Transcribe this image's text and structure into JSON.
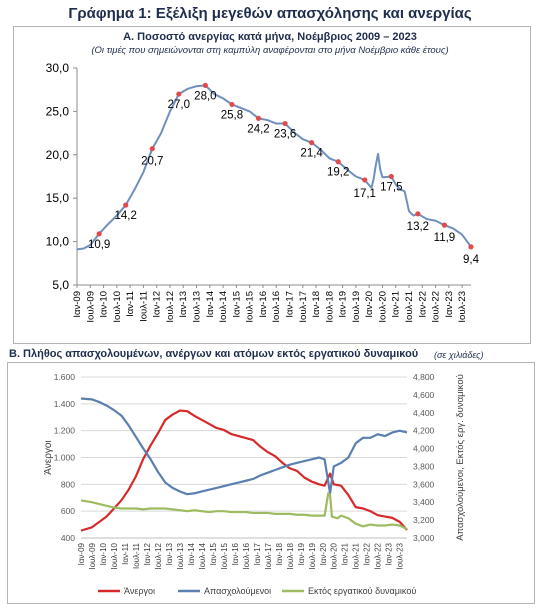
{
  "page": {
    "title": "Γράφημα 1: Εξέλιξη μεγεθών απασχόλησης και ανεργίας"
  },
  "colors": {
    "unemployed": "#d62a2a",
    "employed": "#5b7fae",
    "inactive": "#9dbb61",
    "line_a": "#6f8fbf",
    "marker_a": "#e04b4b"
  },
  "chart_data": [
    {
      "id": "A",
      "type": "line",
      "title": "A. Ποσοστό ανεργίας κατά μήνα, Νοέμβριος 2009 – 2023",
      "subtitle": "(Οι τιμές που σημειώνονται στη καμπύλη αναφέρονται στο μήνα Νοέμβριο κάθε έτους)",
      "ylim": [
        5,
        30
      ],
      "yticks": [
        "5,0",
        "10,0",
        "15,0",
        "20,0",
        "25,0",
        "30,0"
      ],
      "grid": false,
      "x_tick_labels": [
        "Ιαν-09",
        "Ιουλ-09",
        "Ιαν-10",
        "Ιουλ-10",
        "Ιαν-11",
        "Ιουλ-11",
        "Ιαν-12",
        "Ιουλ-12",
        "Ιαν-13",
        "Ιουλ-13",
        "Ιαν-14",
        "Ιουλ-14",
        "Ιαν-15",
        "Ιουλ-15",
        "Ιαν-16",
        "Ιουλ-16",
        "Ιαν-17",
        "Ιουλ-17",
        "Ιαν-18",
        "Ιουλ-18",
        "Ιαν-19",
        "Ιουλ-19",
        "Ιαν-20",
        "Ιουλ-20",
        "Ιαν-21",
        "Ιουλ-21",
        "Ιαν-22",
        "Ιουλ-22",
        "Ιαν-23",
        "Ιουλ-23"
      ],
      "x_range": [
        "2009-01",
        "2023-11"
      ],
      "series": [
        {
          "points": [
            [
              "2009-01",
              9.1
            ],
            [
              "2009-04",
              9.2
            ],
            [
              "2009-07",
              9.6
            ],
            [
              "2009-11",
              10.9
            ],
            [
              "2010-03",
              12.0
            ],
            [
              "2010-07",
              13.0
            ],
            [
              "2010-11",
              14.2
            ],
            [
              "2011-03",
              16.0
            ],
            [
              "2011-07",
              18.0
            ],
            [
              "2011-11",
              20.7
            ],
            [
              "2012-03",
              22.5
            ],
            [
              "2012-07",
              25.0
            ],
            [
              "2012-11",
              27.0
            ],
            [
              "2013-03",
              27.6
            ],
            [
              "2013-07",
              27.9
            ],
            [
              "2013-11",
              28.0
            ],
            [
              "2014-03",
              27.0
            ],
            [
              "2014-07",
              26.5
            ],
            [
              "2014-11",
              25.8
            ],
            [
              "2015-03",
              25.4
            ],
            [
              "2015-07",
              25.0
            ],
            [
              "2015-11",
              24.2
            ],
            [
              "2016-03",
              24.0
            ],
            [
              "2016-07",
              23.6
            ],
            [
              "2016-11",
              23.6
            ],
            [
              "2017-03",
              22.6
            ],
            [
              "2017-07",
              21.8
            ],
            [
              "2017-11",
              21.4
            ],
            [
              "2018-03",
              20.6
            ],
            [
              "2018-07",
              19.6
            ],
            [
              "2018-11",
              19.2
            ],
            [
              "2019-03",
              18.3
            ],
            [
              "2019-07",
              17.5
            ],
            [
              "2019-11",
              17.1
            ],
            [
              "2020-02",
              16.2
            ],
            [
              "2020-03",
              17.2
            ],
            [
              "2020-04",
              18.8
            ],
            [
              "2020-05",
              20.1
            ],
            [
              "2020-06",
              18.3
            ],
            [
              "2020-07",
              17.4
            ],
            [
              "2020-11",
              17.5
            ],
            [
              "2021-01",
              16.6
            ],
            [
              "2021-03",
              16.0
            ],
            [
              "2021-05",
              15.8
            ],
            [
              "2021-07",
              13.5
            ],
            [
              "2021-09",
              13.0
            ],
            [
              "2021-11",
              13.2
            ],
            [
              "2022-03",
              12.6
            ],
            [
              "2022-07",
              12.4
            ],
            [
              "2022-11",
              11.9
            ],
            [
              "2023-03",
              11.5
            ],
            [
              "2023-07",
              10.8
            ],
            [
              "2023-11",
              9.4
            ]
          ]
        }
      ],
      "data_labels": [
        {
          "x": "2009-11",
          "value": "10,9"
        },
        {
          "x": "2010-11",
          "value": "14,2"
        },
        {
          "x": "2011-11",
          "value": "20,7"
        },
        {
          "x": "2012-11",
          "value": "27,0"
        },
        {
          "x": "2013-11",
          "value": "28,0"
        },
        {
          "x": "2014-11",
          "value": "25,8"
        },
        {
          "x": "2015-11",
          "value": "24,2"
        },
        {
          "x": "2016-11",
          "value": "23,6"
        },
        {
          "x": "2017-11",
          "value": "21,4"
        },
        {
          "x": "2018-11",
          "value": "19,2"
        },
        {
          "x": "2019-11",
          "value": "17,1"
        },
        {
          "x": "2020-11",
          "value": "17,5"
        },
        {
          "x": "2021-11",
          "value": "13,2"
        },
        {
          "x": "2022-11",
          "value": "11,9"
        },
        {
          "x": "2023-11",
          "value": "9,4"
        }
      ]
    },
    {
      "id": "B",
      "type": "line",
      "title": "Β. Πλήθος απασχολουμένων, ανέργων και ατόμων εκτός εργατικού δυναμικού",
      "subtitle": "(σε χιλιάδες)",
      "ylabel": "Άνεργοι",
      "y2label": "Απασχολούμενοι, Εκτός εργ. δυναμικού",
      "ylim": [
        400,
        1600
      ],
      "yticks": [
        "400",
        "600",
        "800",
        "1.000",
        "1.200",
        "1.400",
        "1.600"
      ],
      "y2lim": [
        3000,
        4800
      ],
      "y2ticks": [
        "3,000",
        "3,200",
        "3,400",
        "3,600",
        "3,800",
        "4,000",
        "4,200",
        "4,400",
        "4,600",
        "4,800"
      ],
      "x_tick_labels": [
        "Ιαν-09",
        "Ιουλ-09",
        "Ιαν-10",
        "Ιουλ-10",
        "Ιαν-11",
        "Ιουλ-11",
        "Ιαν-12",
        "Ιουλ-12",
        "Ιαν-13",
        "Ιουλ-13",
        "Ιαν-14",
        "Ιουλ-14",
        "Ιαν-15",
        "Ιουλ-15",
        "Ιαν-16",
        "Ιουλ-16",
        "Ιαν-17",
        "Ιουλ-17",
        "Ιαν-18",
        "Ιουλ-18",
        "Ιαν-19",
        "Ιουλ-19",
        "Ιαν-20",
        "Ιουλ-20",
        "Ιαν-21",
        "Ιουλ-21",
        "Ιαν-22",
        "Ιουλ-22",
        "Ιαν-23",
        "Ιουλ-23"
      ],
      "x_range": [
        "2009-01",
        "2023-11"
      ],
      "legend_position": "bottom",
      "series": [
        {
          "name": "Άνεργοι",
          "axis": "left",
          "points": [
            [
              "2009-01",
              455
            ],
            [
              "2009-07",
              480
            ],
            [
              "2009-11",
              520
            ],
            [
              "2010-03",
              560
            ],
            [
              "2010-07",
              620
            ],
            [
              "2010-11",
              680
            ],
            [
              "2011-03",
              760
            ],
            [
              "2011-07",
              860
            ],
            [
              "2011-11",
              990
            ],
            [
              "2012-03",
              1090
            ],
            [
              "2012-07",
              1180
            ],
            [
              "2012-11",
              1280
            ],
            [
              "2013-03",
              1320
            ],
            [
              "2013-07",
              1350
            ],
            [
              "2013-11",
              1345
            ],
            [
              "2014-03",
              1310
            ],
            [
              "2014-07",
              1280
            ],
            [
              "2014-11",
              1250
            ],
            [
              "2015-03",
              1220
            ],
            [
              "2015-07",
              1205
            ],
            [
              "2015-11",
              1175
            ],
            [
              "2016-03",
              1160
            ],
            [
              "2016-07",
              1145
            ],
            [
              "2016-11",
              1130
            ],
            [
              "2017-03",
              1080
            ],
            [
              "2017-07",
              1040
            ],
            [
              "2017-11",
              1010
            ],
            [
              "2018-03",
              960
            ],
            [
              "2018-07",
              920
            ],
            [
              "2018-11",
              900
            ],
            [
              "2019-03",
              850
            ],
            [
              "2019-07",
              820
            ],
            [
              "2019-11",
              800
            ],
            [
              "2020-02",
              790
            ],
            [
              "2020-05",
              880
            ],
            [
              "2020-07",
              800
            ],
            [
              "2020-11",
              790
            ],
            [
              "2021-03",
              720
            ],
            [
              "2021-07",
              630
            ],
            [
              "2021-11",
              620
            ],
            [
              "2022-03",
              600
            ],
            [
              "2022-07",
              570
            ],
            [
              "2022-11",
              560
            ],
            [
              "2023-03",
              550
            ],
            [
              "2023-07",
              520
            ],
            [
              "2023-11",
              460
            ]
          ]
        },
        {
          "name": "Απασχολούμενοι",
          "axis": "right",
          "points": [
            [
              "2009-01",
              4560
            ],
            [
              "2009-07",
              4550
            ],
            [
              "2009-11",
              4520
            ],
            [
              "2010-03",
              4480
            ],
            [
              "2010-07",
              4430
            ],
            [
              "2010-11",
              4370
            ],
            [
              "2011-03",
              4260
            ],
            [
              "2011-07",
              4130
            ],
            [
              "2011-11",
              4000
            ],
            [
              "2012-03",
              3880
            ],
            [
              "2012-07",
              3740
            ],
            [
              "2012-11",
              3620
            ],
            [
              "2013-03",
              3560
            ],
            [
              "2013-07",
              3520
            ],
            [
              "2013-11",
              3490
            ],
            [
              "2014-03",
              3500
            ],
            [
              "2014-07",
              3520
            ],
            [
              "2014-11",
              3540
            ],
            [
              "2015-03",
              3560
            ],
            [
              "2015-07",
              3580
            ],
            [
              "2015-11",
              3600
            ],
            [
              "2016-03",
              3620
            ],
            [
              "2016-07",
              3640
            ],
            [
              "2016-11",
              3660
            ],
            [
              "2017-03",
              3700
            ],
            [
              "2017-07",
              3730
            ],
            [
              "2017-11",
              3760
            ],
            [
              "2018-03",
              3790
            ],
            [
              "2018-07",
              3820
            ],
            [
              "2018-11",
              3840
            ],
            [
              "2019-03",
              3860
            ],
            [
              "2019-07",
              3880
            ],
            [
              "2019-11",
              3900
            ],
            [
              "2020-02",
              3880
            ],
            [
              "2020-05",
              3500
            ],
            [
              "2020-07",
              3800
            ],
            [
              "2020-11",
              3840
            ],
            [
              "2021-03",
              3900
            ],
            [
              "2021-07",
              4060
            ],
            [
              "2021-11",
              4120
            ],
            [
              "2022-03",
              4120
            ],
            [
              "2022-07",
              4160
            ],
            [
              "2022-11",
              4140
            ],
            [
              "2023-03",
              4180
            ],
            [
              "2023-07",
              4200
            ],
            [
              "2023-11",
              4180
            ]
          ]
        },
        {
          "name": "Εκτός εργατικού δυναμικού",
          "axis": "right",
          "points": [
            [
              "2009-01",
              3420
            ],
            [
              "2009-07",
              3400
            ],
            [
              "2009-11",
              3380
            ],
            [
              "2010-03",
              3360
            ],
            [
              "2010-07",
              3340
            ],
            [
              "2010-11",
              3330
            ],
            [
              "2011-03",
              3330
            ],
            [
              "2011-07",
              3330
            ],
            [
              "2011-11",
              3320
            ],
            [
              "2012-03",
              3330
            ],
            [
              "2012-07",
              3330
            ],
            [
              "2012-11",
              3330
            ],
            [
              "2013-03",
              3320
            ],
            [
              "2013-07",
              3310
            ],
            [
              "2013-11",
              3300
            ],
            [
              "2014-03",
              3310
            ],
            [
              "2014-07",
              3300
            ],
            [
              "2014-11",
              3290
            ],
            [
              "2015-03",
              3300
            ],
            [
              "2015-07",
              3300
            ],
            [
              "2015-11",
              3290
            ],
            [
              "2016-03",
              3290
            ],
            [
              "2016-07",
              3290
            ],
            [
              "2016-11",
              3280
            ],
            [
              "2017-03",
              3280
            ],
            [
              "2017-07",
              3280
            ],
            [
              "2017-11",
              3270
            ],
            [
              "2018-03",
              3270
            ],
            [
              "2018-07",
              3270
            ],
            [
              "2018-11",
              3260
            ],
            [
              "2019-03",
              3260
            ],
            [
              "2019-07",
              3250
            ],
            [
              "2019-11",
              3250
            ],
            [
              "2020-02",
              3250
            ],
            [
              "2020-04",
              3500
            ],
            [
              "2020-05",
              3480
            ],
            [
              "2020-06",
              3240
            ],
            [
              "2020-09",
              3220
            ],
            [
              "2020-11",
              3250
            ],
            [
              "2021-03",
              3220
            ],
            [
              "2021-07",
              3160
            ],
            [
              "2021-11",
              3130
            ],
            [
              "2022-03",
              3150
            ],
            [
              "2022-07",
              3140
            ],
            [
              "2022-11",
              3140
            ],
            [
              "2023-03",
              3150
            ],
            [
              "2023-07",
              3140
            ],
            [
              "2023-11",
              3100
            ]
          ]
        }
      ]
    }
  ]
}
